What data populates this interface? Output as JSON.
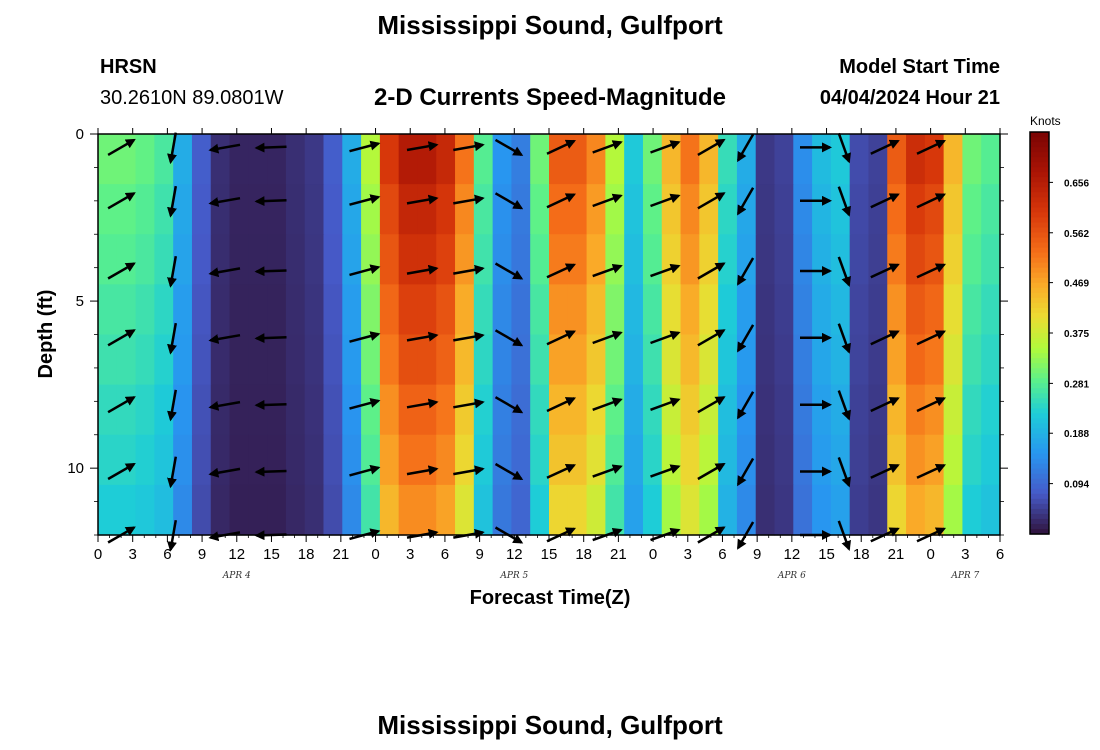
{
  "header": {
    "title": "Mississippi Sound, Gulfport",
    "station_id": "HRSN",
    "station_coords": "30.2610N  89.0801W",
    "subtitle": "2-D Currents Speed-Magnitude",
    "model_start_label": "Model Start Time",
    "model_start_value": "04/04/2024 Hour 21",
    "footer_title": "Mississippi Sound, Gulfport"
  },
  "chart_data": {
    "type": "heatmap",
    "title": "2-D Currents Speed-Magnitude",
    "xlabel": "Forecast Time(Z)",
    "ylabel": "Depth (ft)",
    "units": "Knots",
    "x_hours_range": [
      0,
      78
    ],
    "ylim": [
      0,
      12
    ],
    "y_inverted": true,
    "x_tick_labels": [
      "0",
      "3",
      "6",
      "9",
      "12",
      "15",
      "18",
      "21",
      "0",
      "3",
      "6",
      "9",
      "12",
      "15",
      "18",
      "21",
      "0",
      "3",
      "6",
      "9",
      "12",
      "15",
      "18",
      "21",
      "0",
      "3",
      "6"
    ],
    "y_tick_labels": [
      "0",
      "5",
      "10"
    ],
    "y_tick_values": [
      0,
      5,
      10
    ],
    "date_labels": [
      {
        "label": "APR 4",
        "hour": 12
      },
      {
        "label": "APR 5",
        "hour": 36
      },
      {
        "label": "APR 6",
        "hour": 60
      },
      {
        "label": "APR 7",
        "hour": 75
      }
    ],
    "colorbar": {
      "title": "Knots",
      "min": 0.0,
      "max": 0.75,
      "tick_labels": [
        "0.656",
        "0.562",
        "0.469",
        "0.375",
        "0.281",
        "0.188",
        "0.094"
      ],
      "tick_values": [
        0.656,
        0.562,
        0.469,
        0.375,
        0.281,
        0.188,
        0.094
      ]
    },
    "speed_by_hour": [
      0.3,
      0.3,
      0.29,
      0.27,
      0.18,
      0.08,
      0.03,
      0.02,
      0.02,
      0.02,
      0.03,
      0.04,
      0.08,
      0.18,
      0.35,
      0.6,
      0.66,
      0.66,
      0.63,
      0.52,
      0.28,
      0.15,
      0.12,
      0.3,
      0.55,
      0.55,
      0.5,
      0.35,
      0.22,
      0.3,
      0.45,
      0.52,
      0.45,
      0.25,
      0.18,
      0.04,
      0.05,
      0.14,
      0.2,
      0.22,
      0.06,
      0.05,
      0.55,
      0.62,
      0.6,
      0.45,
      0.3,
      0.28
    ],
    "depth_factors": [
      1.0,
      0.96,
      0.93,
      0.89,
      0.86,
      0.82,
      0.79,
      0.75
    ],
    "vector_rows_depth": [
      0.4,
      2.0,
      4.1,
      6.1,
      8.1,
      10.1,
      12.0
    ],
    "vector_columns": [
      {
        "hour": 2,
        "angle": -30
      },
      {
        "hour": 6.5,
        "angle": 100
      },
      {
        "hour": 11,
        "angle": 170
      },
      {
        "hour": 15,
        "angle": 178
      },
      {
        "hour": 23,
        "angle": -15
      },
      {
        "hour": 28,
        "angle": -10
      },
      {
        "hour": 32,
        "angle": -10
      },
      {
        "hour": 35.5,
        "angle": 30
      },
      {
        "hour": 40,
        "angle": -25
      },
      {
        "hour": 44,
        "angle": -20
      },
      {
        "hour": 49,
        "angle": -20
      },
      {
        "hour": 53,
        "angle": -30
      },
      {
        "hour": 56,
        "angle": 120
      },
      {
        "hour": 62,
        "angle": 0
      },
      {
        "hour": 64.5,
        "angle": 70
      },
      {
        "hour": 68,
        "angle": -25
      },
      {
        "hour": 72,
        "angle": -25
      }
    ]
  }
}
